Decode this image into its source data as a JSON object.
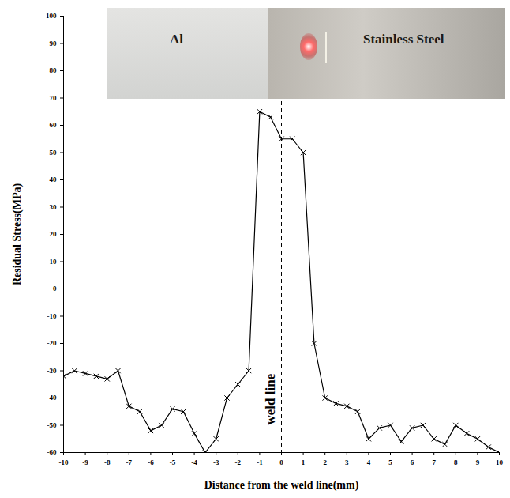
{
  "chart_data": {
    "type": "line",
    "x_label": "Distance from the weld line(mm)",
    "y_label": "Residual Stress(MPa)",
    "x": [
      -10,
      -9.5,
      -9,
      -8.5,
      -8,
      -7.5,
      -7,
      -6.5,
      -6,
      -5.5,
      -5,
      -4.5,
      -4,
      -3.5,
      -3,
      -2.5,
      -2,
      -1.5,
      -1,
      -0.5,
      0,
      0.5,
      1,
      1.5,
      2,
      2.5,
      3,
      3.5,
      4,
      4.5,
      5,
      5.5,
      6,
      6.5,
      7,
      7.5,
      8,
      8.5,
      9,
      9.5,
      10
    ],
    "values": [
      -32,
      -30,
      -31,
      -32,
      -33,
      -30,
      -43,
      -45,
      -52,
      -50,
      -44,
      -45,
      -53,
      -60,
      -55,
      -40,
      -35,
      -30,
      65,
      63,
      55,
      55,
      50,
      -20,
      -40,
      -42,
      -43,
      -45,
      -55,
      -51,
      -50,
      -56,
      -51,
      -50,
      -55,
      -57,
      -50,
      -53,
      -55,
      -58,
      -60
    ],
    "color": "#000000",
    "marker": "x",
    "xlim": [
      -10,
      10
    ],
    "xticks": [
      -10,
      -9,
      -8,
      -7,
      -6,
      -5,
      -4,
      -3,
      -2,
      -1,
      0,
      1,
      2,
      3,
      4,
      5,
      6,
      7,
      8,
      9,
      10
    ],
    "ylim": [
      -60,
      100
    ],
    "yticks": [
      -60,
      -50,
      -40,
      -30,
      -20,
      -10,
      0,
      10,
      20,
      30,
      40,
      50,
      60,
      70,
      80,
      90,
      100
    ],
    "grid": false,
    "weld_line_x": 0,
    "weld_line_label": "weld line",
    "inset_labels": [
      "Al",
      "Stainless Steel"
    ]
  }
}
